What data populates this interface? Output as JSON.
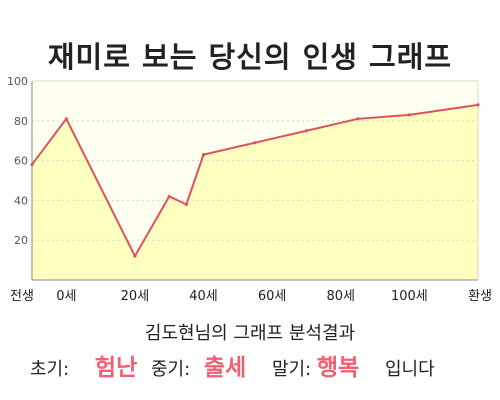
{
  "chart_data": {
    "type": "area",
    "title": "재미로 보는 당신의 인생 그래프",
    "x_ticks": [
      "전생",
      "0세",
      "20세",
      "40세",
      "60세",
      "80세",
      "100세",
      "환생"
    ],
    "x": [
      -10,
      0,
      20,
      30,
      35,
      40,
      55,
      70,
      85,
      100,
      120
    ],
    "y": [
      58,
      81,
      12,
      42,
      38,
      63,
      69,
      75,
      81,
      83,
      88
    ],
    "xlim": [
      -10,
      120
    ],
    "ylim": [
      0,
      100
    ],
    "yticks": [
      20,
      40,
      60,
      80,
      100
    ],
    "grid": true,
    "fill_color": "#ffffc0",
    "plot_bg": "#fffff0",
    "line_color": "#e05060"
  },
  "result": {
    "title": "김도현님의 그래프 분석결과",
    "early_label": "초기:",
    "early_value": "험난",
    "middle_label": "중기:",
    "middle_value": "출세",
    "late_label": "말기:",
    "late_value": "행복",
    "suffix": "입니다",
    "highlight_color": "#f06070"
  }
}
